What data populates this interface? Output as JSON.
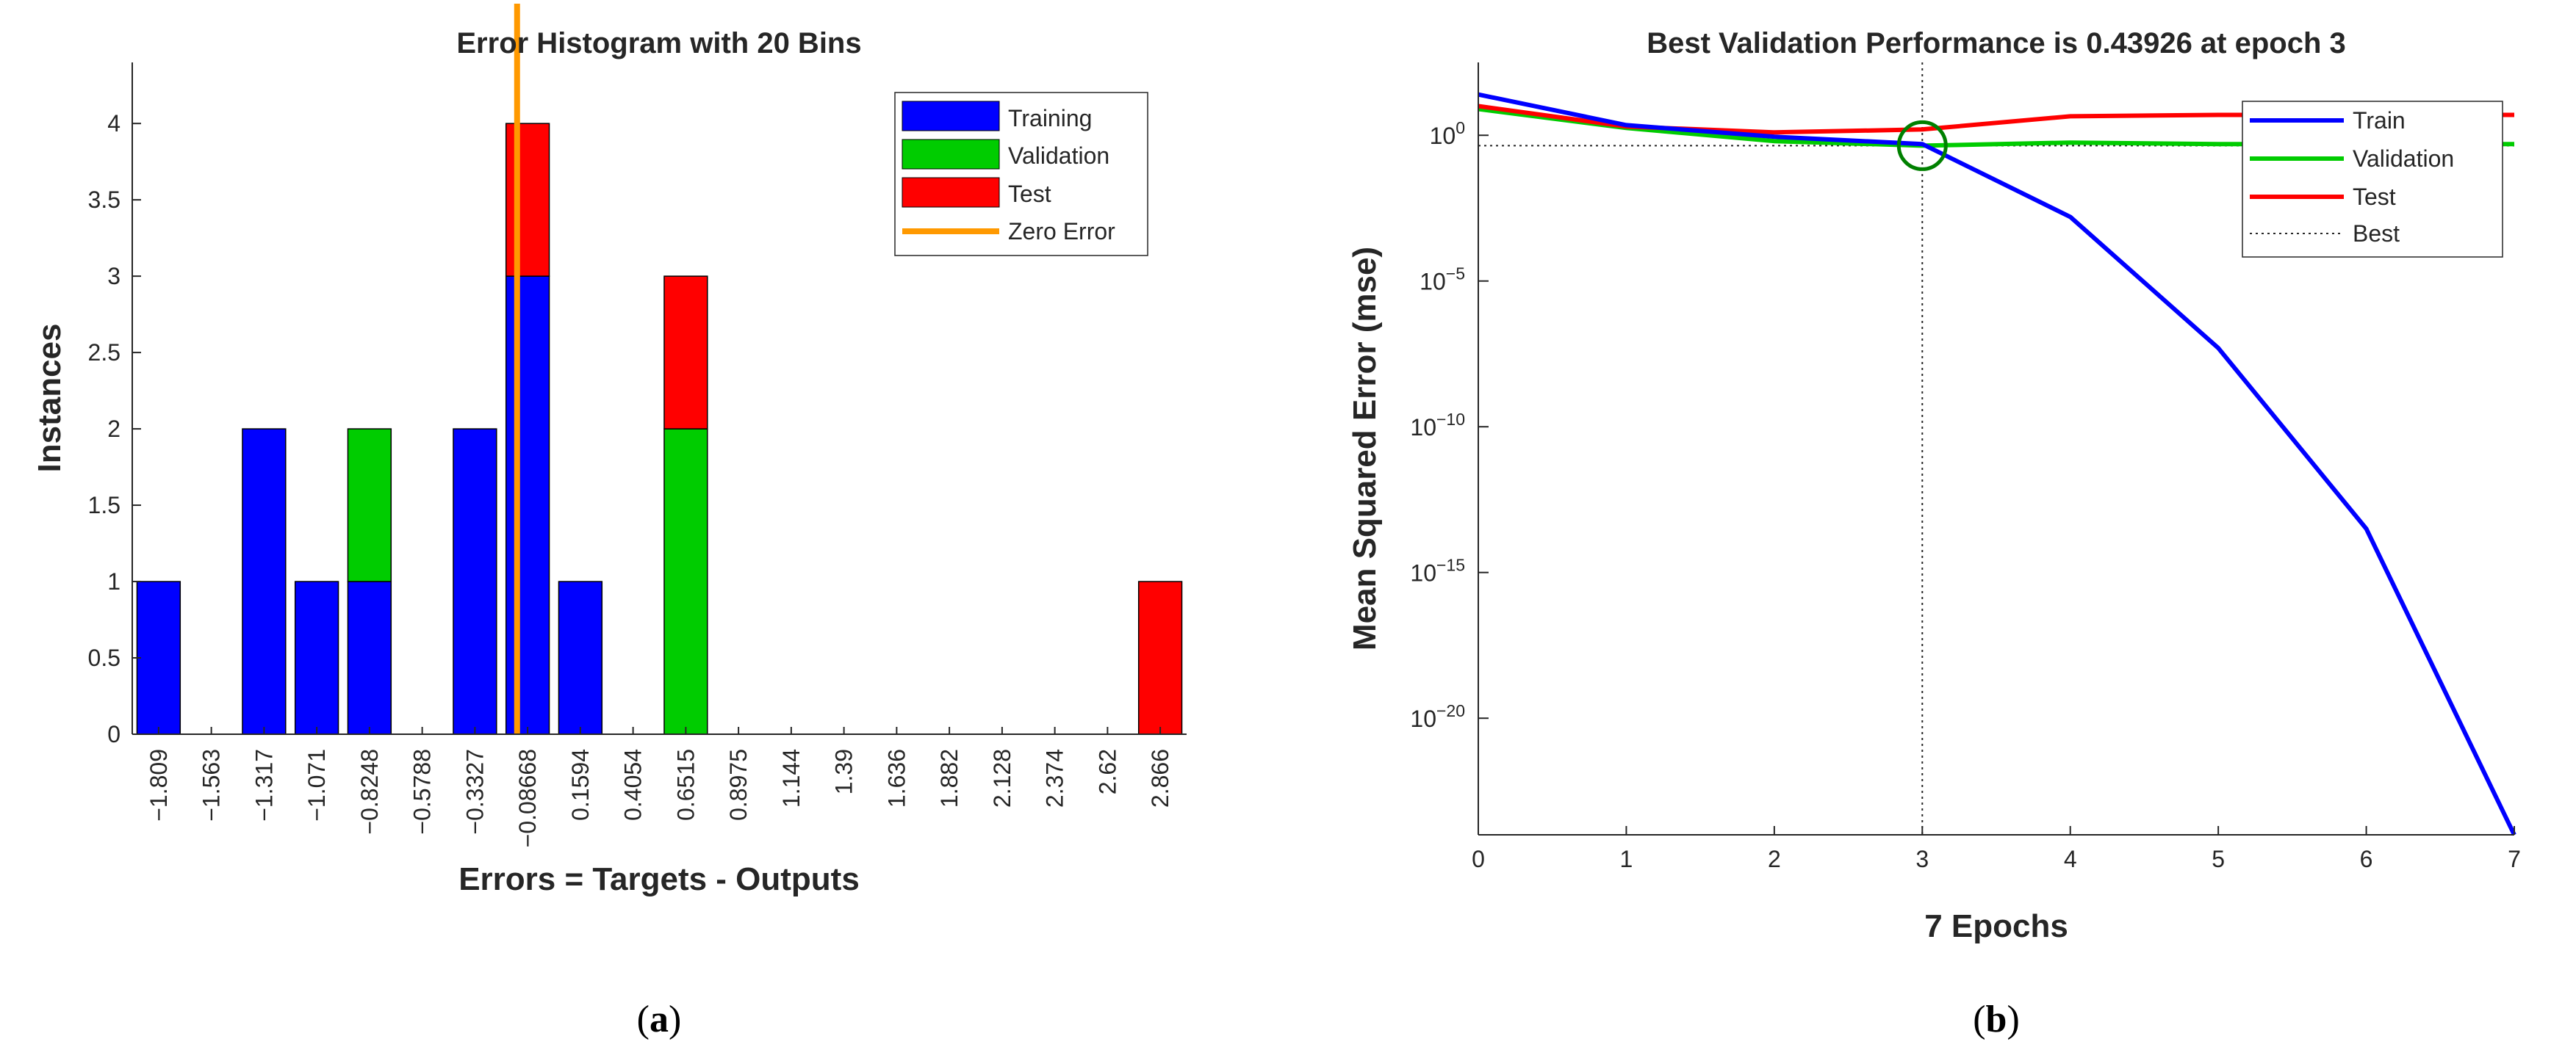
{
  "chart_data": [
    {
      "type": "bar",
      "stacked": true,
      "title": "Error Histogram with 20 Bins",
      "xlabel": "Errors = Targets - Outputs",
      "ylabel": "Instances",
      "categories": [
        "−1.809",
        "−1.563",
        "−1.317",
        "−1.071",
        "−0.8248",
        "−0.5788",
        "−0.3327",
        "−0.08668",
        "0.1594",
        "0.4054",
        "0.6515",
        "0.8975",
        "1.144",
        "1.39",
        "1.636",
        "1.882",
        "2.128",
        "2.374",
        "2.62",
        "2.866"
      ],
      "series": [
        {
          "name": "Training",
          "color": "#0000ff",
          "values": [
            1,
            0,
            2,
            1,
            1,
            0,
            2,
            3,
            1,
            0,
            0,
            0,
            0,
            0,
            0,
            0,
            0,
            0,
            0,
            0
          ]
        },
        {
          "name": "Validation",
          "color": "#00cc00",
          "values": [
            0,
            0,
            0,
            0,
            1,
            0,
            0,
            0,
            0,
            0,
            2,
            0,
            0,
            0,
            0,
            0,
            0,
            0,
            0,
            0
          ]
        },
        {
          "name": "Test",
          "color": "#ff0000",
          "values": [
            0,
            0,
            0,
            0,
            0,
            0,
            0,
            1,
            0,
            0,
            1,
            0,
            0,
            0,
            0,
            0,
            0,
            0,
            0,
            1
          ]
        }
      ],
      "zero_error": {
        "name": "Zero Error",
        "color": "#ff9900",
        "category_offset": 7.3
      },
      "ylim": [
        0,
        4.4
      ],
      "yticks": [
        "0",
        "0.5",
        "1",
        "1.5",
        "2",
        "2.5",
        "3",
        "3.5",
        "4"
      ],
      "ytick_values": [
        0,
        0.5,
        1,
        1.5,
        2,
        2.5,
        3,
        3.5,
        4
      ],
      "grid": false,
      "legend": "top-right"
    },
    {
      "type": "line",
      "title": "Best Validation Performance is 0.43926 at epoch 3",
      "xlabel": "7 Epochs",
      "ylabel": "Mean Squared Error  (mse)",
      "yscale": "log",
      "x": [
        0,
        1,
        2,
        3,
        4,
        5,
        6,
        7
      ],
      "xticks": [
        "0",
        "1",
        "2",
        "3",
        "4",
        "5",
        "6",
        "7"
      ],
      "xlim": [
        0,
        7
      ],
      "ylim_log10": [
        -24,
        2.5
      ],
      "yticks": [
        {
          "base": "10",
          "exp": "0"
        },
        {
          "base": "10",
          "exp": "−5"
        },
        {
          "base": "10",
          "exp": "−10"
        },
        {
          "base": "10",
          "exp": "−15"
        },
        {
          "base": "10",
          "exp": "−20"
        }
      ],
      "ytick_log10": [
        0,
        -5,
        -10,
        -15,
        -20
      ],
      "series": [
        {
          "name": "Train",
          "color": "#0000ff",
          "log10_values": [
            1.4,
            0.35,
            -0.05,
            -0.3,
            -2.8,
            -7.3,
            -13.5,
            -24
          ]
        },
        {
          "name": "Validation",
          "color": "#00cc00",
          "log10_values": [
            0.9,
            0.25,
            -0.2,
            -0.357,
            -0.25,
            -0.3,
            -0.3,
            -0.3
          ]
        },
        {
          "name": "Test",
          "color": "#ff0000",
          "log10_values": [
            1.0,
            0.3,
            0.1,
            0.2,
            0.65,
            0.7,
            0.7,
            0.7
          ]
        }
      ],
      "best": {
        "name": "Best",
        "epoch": 3,
        "value": 0.43926,
        "log10_value": -0.357,
        "marker_color": "#008000"
      },
      "grid": false,
      "legend": "top-right"
    }
  ],
  "captions": [
    {
      "open": "(",
      "letter": "a",
      "close": ")"
    },
    {
      "open": "(",
      "letter": "b",
      "close": ")"
    }
  ]
}
